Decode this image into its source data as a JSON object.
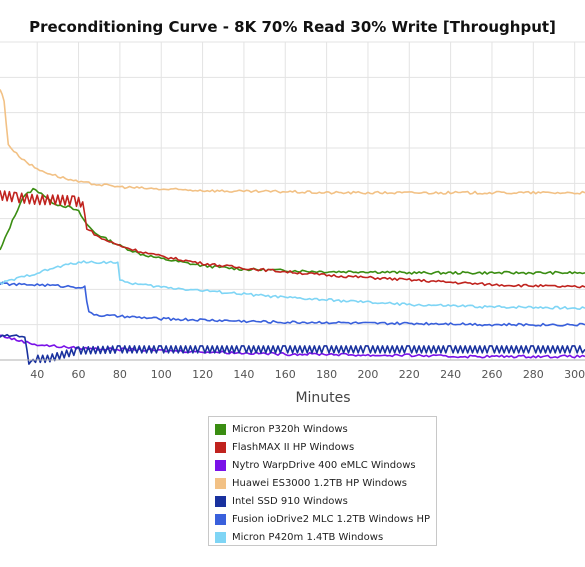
{
  "chart_data": {
    "type": "line",
    "title": "Preconditioning Curve - 8K 70% Read 30% Write [Throughput]",
    "xlabel": "Minutes",
    "ylabel": "",
    "xlim": [
      22,
      305
    ],
    "ylim": [
      0,
      270
    ],
    "x_ticks": [
      40,
      60,
      80,
      100,
      120,
      140,
      160,
      180,
      200,
      220,
      240,
      260,
      280,
      300
    ],
    "grid": {
      "x": true,
      "y": true
    },
    "legend_position": "bottom",
    "series": [
      {
        "name": "Micron P320h Windows",
        "color": "#3a8d12",
        "x": [
          22,
          28,
          33,
          38,
          42,
          46,
          50,
          55,
          60,
          64,
          68,
          72,
          80,
          90,
          100,
          120,
          140,
          160,
          180,
          200,
          220,
          240,
          260,
          280,
          300,
          305
        ],
        "values": [
          93,
          118,
          138,
          145,
          142,
          135,
          132,
          130,
          126,
          115,
          108,
          104,
          97,
          90,
          86,
          80,
          77,
          76,
          75,
          75,
          74,
          74,
          74,
          74,
          74,
          74
        ]
      },
      {
        "name": "FlashMAX II HP Windows",
        "color": "#c0231e",
        "x": [
          22,
          30,
          40,
          50,
          58,
          60,
          62,
          64,
          70,
          80,
          90,
          100,
          120,
          140,
          160,
          180,
          200,
          220,
          240,
          260,
          280,
          300,
          305
        ],
        "values": [
          140,
          138,
          136,
          136,
          135,
          134,
          134,
          112,
          104,
          97,
          92,
          88,
          82,
          78,
          75,
          72,
          70,
          68,
          66,
          64,
          63,
          62,
          62
        ]
      },
      {
        "name": "Nytro WarpDrive 400 eMLC Windows",
        "color": "#7a12e8",
        "x": [
          22,
          30,
          40,
          60,
          80,
          100,
          120,
          140,
          160,
          180,
          200,
          220,
          240,
          260,
          280,
          300,
          305
        ],
        "values": [
          21,
          17,
          13,
          10,
          9,
          8,
          7,
          6,
          5,
          5,
          4,
          4,
          3,
          3,
          3,
          3,
          3
        ]
      },
      {
        "name": "Huawei ES3000 1.2TB HP Windows",
        "color": "#f2c185",
        "x": [
          22,
          24,
          26,
          30,
          35,
          40,
          50,
          60,
          70,
          80,
          100,
          120,
          140,
          160,
          180,
          200,
          220,
          240,
          260,
          280,
          300,
          305
        ],
        "values": [
          230,
          220,
          183,
          175,
          168,
          162,
          156,
          151,
          149,
          147,
          145,
          144,
          143,
          143,
          142,
          142,
          142,
          142,
          142,
          142,
          142,
          142
        ]
      },
      {
        "name": "Intel SSD 910 Windows",
        "color": "#19319e",
        "x": [
          22,
          30,
          34,
          36,
          38,
          45,
          60,
          80,
          100,
          120,
          140,
          160,
          180,
          200,
          220,
          240,
          260,
          280,
          300,
          305
        ],
        "values": [
          20,
          21,
          20,
          -4,
          1,
          1,
          8,
          9,
          9,
          9,
          9,
          9,
          9,
          9,
          9,
          9,
          9,
          9,
          9,
          9
        ]
      },
      {
        "name": "Fusion ioDrive2 MLC 1.2TB Windows HP",
        "color": "#3960dc",
        "x": [
          22,
          30,
          40,
          50,
          60,
          63,
          64,
          65,
          70,
          80,
          100,
          120,
          140,
          160,
          180,
          200,
          220,
          240,
          260,
          280,
          300,
          305
        ],
        "values": [
          65,
          64,
          64,
          63,
          62,
          62,
          50,
          40,
          38,
          37,
          35,
          34,
          33,
          32,
          32,
          31,
          31,
          31,
          30,
          30,
          30,
          30
        ]
      },
      {
        "name": "Micron P420m 1.4TB Windows",
        "color": "#7fd5f5",
        "x": [
          22,
          30,
          40,
          50,
          55,
          60,
          70,
          79,
          80,
          90,
          100,
          120,
          140,
          160,
          180,
          200,
          220,
          240,
          260,
          280,
          300,
          305
        ],
        "values": [
          65,
          69,
          74,
          79,
          81,
          83,
          83,
          83,
          67,
          64,
          62,
          59,
          56,
          53,
          51,
          49,
          47,
          46,
          45,
          45,
          44,
          44
        ]
      }
    ]
  }
}
